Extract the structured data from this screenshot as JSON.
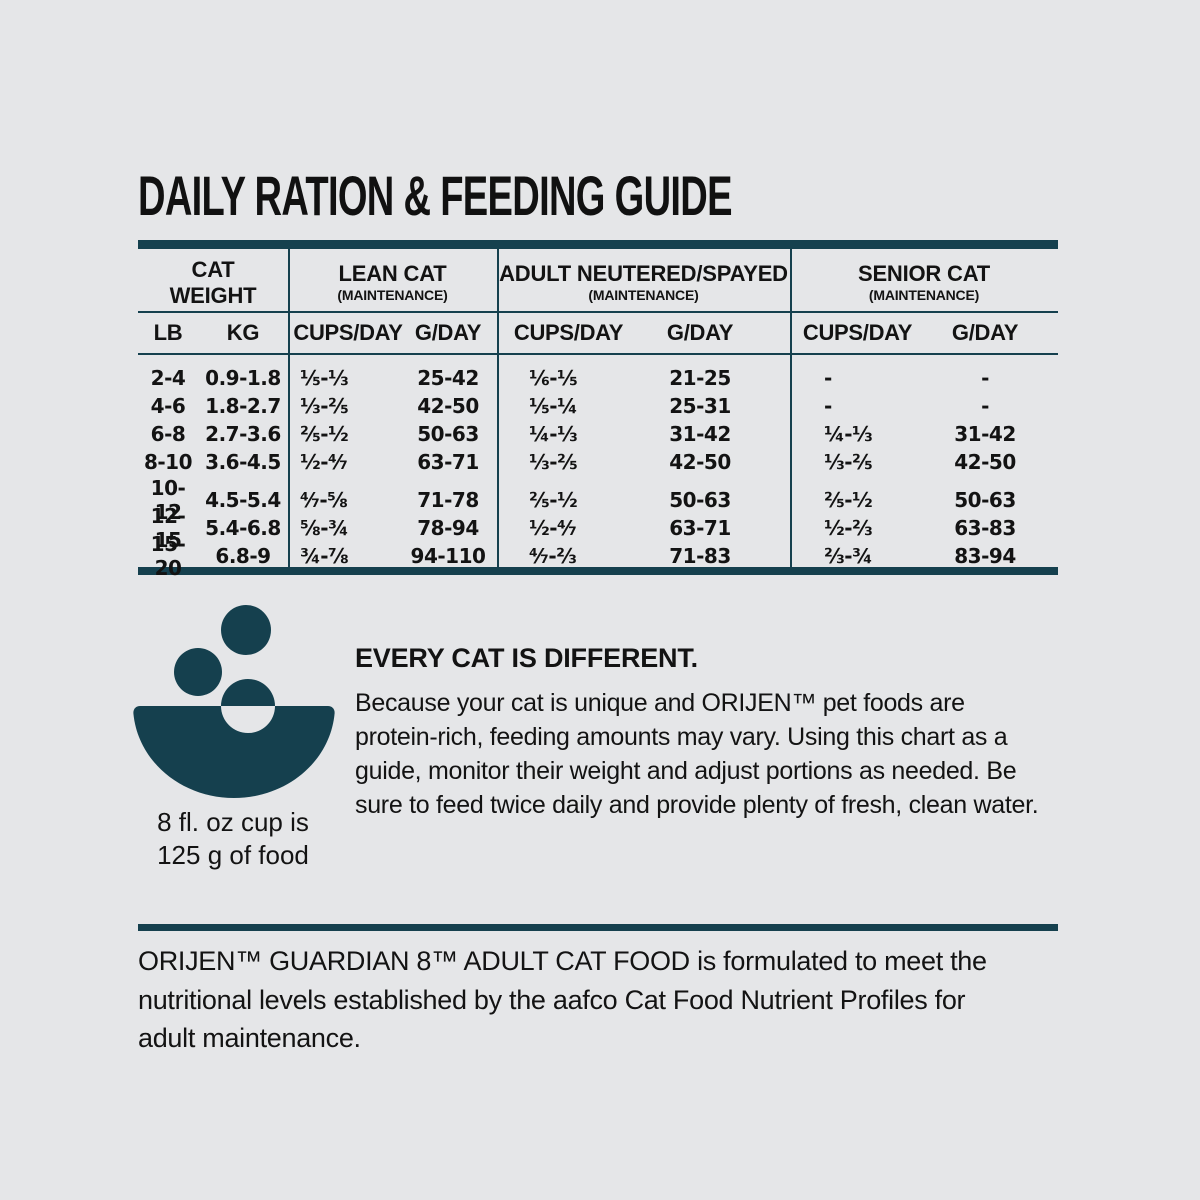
{
  "title": "DAILY RATION & FEEDING GUIDE",
  "colors": {
    "accent_teal": "#15404e",
    "background": "#e5e6e8",
    "text": "#131313"
  },
  "table": {
    "groups": [
      {
        "title": "CAT",
        "title2": "WEIGHT",
        "subtitle": ""
      },
      {
        "title": "LEAN CAT",
        "subtitle": "(MAINTENANCE)"
      },
      {
        "title": "ADULT NEUTERED/SPAYED",
        "subtitle": "(MAINTENANCE)"
      },
      {
        "title": "SENIOR CAT",
        "subtitle": "(MAINTENANCE)"
      }
    ],
    "subheaders": [
      "LB",
      "KG",
      "CUPS/DAY",
      "G/DAY",
      "CUPS/DAY",
      "G/DAY",
      "CUPS/DAY",
      "G/DAY"
    ],
    "rows": [
      [
        "2-4",
        "0.9-1.8",
        "⅕-⅓",
        "25-42",
        "⅙-⅕",
        "21-25",
        "-",
        "-"
      ],
      [
        "4-6",
        "1.8-2.7",
        "⅓-⅖",
        "42-50",
        "⅕-¼",
        "25-31",
        "-",
        "-"
      ],
      [
        "6-8",
        "2.7-3.6",
        "⅖-½",
        "50-63",
        "¼-⅓",
        "31-42",
        "¼-⅓",
        "31-42"
      ],
      [
        "8-10",
        "3.6-4.5",
        "½-⁴⁄₇",
        "63-71",
        "⅓-⅖",
        "42-50",
        "⅓-⅖",
        "42-50"
      ],
      [
        "10-12",
        "4.5-5.4",
        "⁴⁄₇-⅝",
        "71-78",
        "⅖-½",
        "50-63",
        "⅖-½",
        "50-63"
      ],
      [
        "12-15",
        "5.4-6.8",
        "⅝-¾",
        "78-94",
        "½-⁴⁄₇",
        "63-71",
        "½-⅔",
        "63-83"
      ],
      [
        "15-20",
        "6.8-9",
        "¾-⅞",
        "94-110",
        "⁴⁄₇-⅔",
        "71-83",
        "⅔-¾",
        "83-94"
      ]
    ]
  },
  "cup_note": {
    "icon": "food-bowl-icon",
    "lines": [
      "8 fl. oz cup is",
      "125 g of food"
    ]
  },
  "info": {
    "heading": "EVERY CAT IS DIFFERENT.",
    "lines": [
      "Because your cat is unique and ORIJEN™ pet foods are",
      "protein-rich, feeding amounts may vary. Using this chart as a",
      "guide, monitor their weight and adjust portions as needed. Be",
      "sure to feed twice daily and provide plenty of fresh, clean water."
    ]
  },
  "footer": {
    "lines": [
      "ORIJEN™ GUARDIAN 8™ ADULT CAT FOOD is formulated to meet the",
      "nutritional levels established by the aafco Cat Food Nutrient Profiles for",
      "adult maintenance."
    ]
  }
}
